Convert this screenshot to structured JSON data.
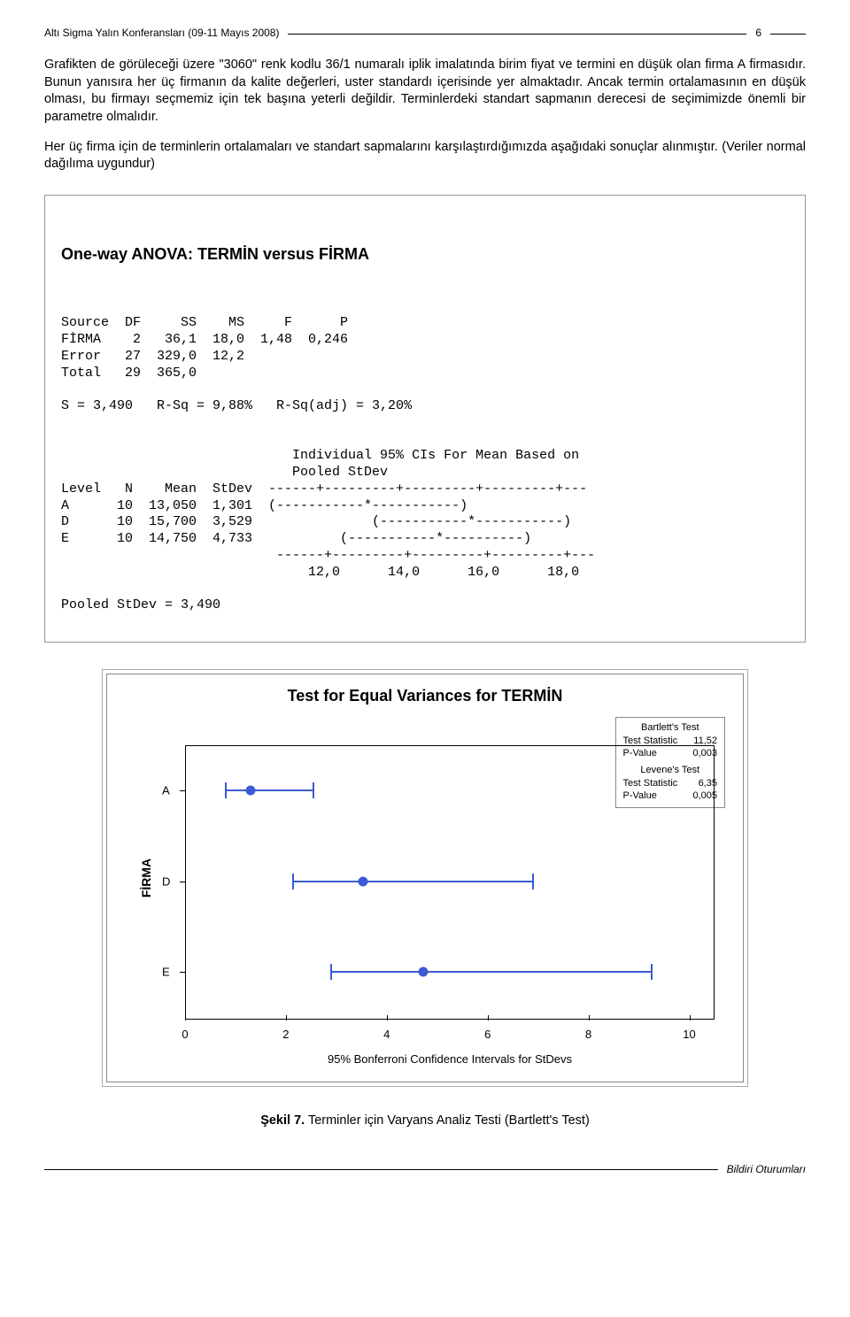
{
  "header": {
    "title": "Altı Sigma Yalın Konferansları (09-11 Mayıs 2008)",
    "page_number": "6"
  },
  "paragraphs": {
    "p1": "Grafikten de görüleceği üzere \"3060\" renk kodlu 36/1 numaralı iplik imalatında birim fiyat ve termini en düşük olan firma A firmasıdır. Bunun yanısıra her üç firmanın da kalite değerleri, uster standardı içerisinde yer almaktadır. Ancak termin ortalamasının en düşük olması, bu firmayı seçmemiz için tek başına yeterli değildir. Terminlerdeki standart sapmanın derecesi de seçimimizde önemli bir parametre olmalıdır.",
    "p2": "Her üç firma için de terminlerin ortalamaları ve standart sapmalarını  karşılaştırdığımızda aşağıdaki sonuçlar alınmıştır. (Veriler normal dağılıma uygundur)"
  },
  "anova": {
    "title": "One-way ANOVA: TERMİN versus FİRMA",
    "lines": [
      "Source  DF     SS    MS     F      P",
      "FİRMA    2   36,1  18,0  1,48  0,246",
      "Error   27  329,0  12,2",
      "Total   29  365,0",
      "",
      "S = 3,490   R-Sq = 9,88%   R-Sq(adj) = 3,20%",
      "",
      "",
      "                             Individual 95% CIs For Mean Based on",
      "                             Pooled StDev",
      "Level   N    Mean  StDev  ------+---------+---------+---------+---",
      "A      10  13,050  1,301  (-----------*-----------)",
      "D      10  15,700  3,529               (-----------*-----------)",
      "E      10  14,750  4,733           (-----------*----------)",
      "                           ------+---------+---------+---------+---",
      "                               12,0      14,0      16,0      18,0",
      "",
      "Pooled StDev = 3,490"
    ]
  },
  "chart": {
    "title": "Test for Equal Variances for TERMİN",
    "y_label": "FİRMA",
    "y_categories": [
      "A",
      "D",
      "E"
    ],
    "x_label": "95% Bonferroni Confidence Intervals for StDevs",
    "x_ticks": [
      0,
      2,
      4,
      6,
      8,
      10
    ],
    "x_min": 0,
    "x_max": 10.5,
    "series": [
      {
        "label": "A",
        "low": 0.8,
        "point": 1.3,
        "high": 2.55
      },
      {
        "label": "D",
        "low": 2.15,
        "point": 3.53,
        "high": 6.9
      },
      {
        "label": "E",
        "low": 2.9,
        "point": 4.73,
        "high": 9.25
      }
    ],
    "legend": {
      "bartlett_title": "Bartlett's Test",
      "bartlett_stat_label": "Test Statistic",
      "bartlett_stat": "11,52",
      "bartlett_p_label": "P-Value",
      "bartlett_p": "0,003",
      "levene_title": "Levene's Test",
      "levene_stat_label": "Test Statistic",
      "levene_stat": "6,35",
      "levene_p_label": "P-Value",
      "levene_p": "0,005"
    },
    "color_line": "#3b5bd4"
  },
  "figure_caption": {
    "label": "Şekil 7.",
    "text": " Terminler için Varyans Analiz Testi (Bartlett's Test)"
  },
  "footer": {
    "text": "Bildiri Oturumları"
  }
}
